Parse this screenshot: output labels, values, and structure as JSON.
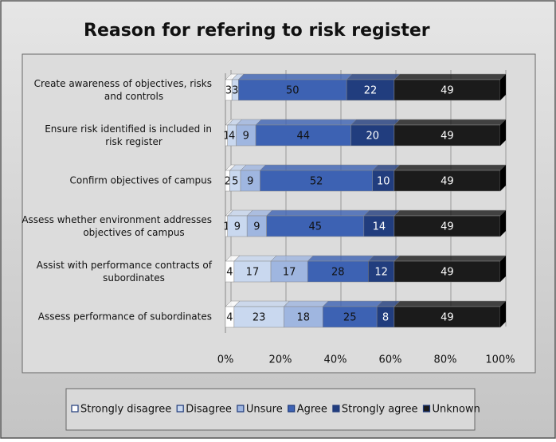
{
  "chart_data": {
    "type": "stacked_bar_100",
    "orientation": "horizontal",
    "title": "Reason for refering to risk register",
    "categories": [
      "Create awareness of objectives, risks and controls",
      "Ensure risk identified is included in risk register",
      "Confirm objectives of campus",
      "Assess whether  environment addresses objectives of campus",
      "Assist with performance contracts of subordinates",
      "Assess performance of subordinates"
    ],
    "series": [
      {
        "name": "Strongly disagree",
        "color": "#ffffff",
        "values": [
          3,
          1,
          2,
          1,
          4,
          4
        ]
      },
      {
        "name": "Disagree",
        "color": "#c9d8ef",
        "values": [
          3,
          4,
          5,
          9,
          17,
          23
        ]
      },
      {
        "name": "Unsure",
        "color": "#9fb6e0",
        "values": [
          0,
          9,
          9,
          9,
          17,
          18
        ]
      },
      {
        "name": "Agree",
        "color": "#3d62b3",
        "values": [
          50,
          44,
          52,
          45,
          28,
          25
        ]
      },
      {
        "name": "Strongly agree",
        "color": "#213d7e",
        "values": [
          22,
          20,
          10,
          14,
          12,
          8
        ]
      },
      {
        "name": "Unknown",
        "color": "#1b1b1b",
        "values": [
          49,
          49,
          49,
          49,
          49,
          49
        ]
      }
    ],
    "xlim": [
      0,
      100
    ],
    "xticks": [
      {
        "value": 0,
        "label": "0%"
      },
      {
        "value": 20,
        "label": "20%"
      },
      {
        "value": 40,
        "label": "40%"
      },
      {
        "value": 60,
        "label": "60%"
      },
      {
        "value": 80,
        "label": "80%"
      },
      {
        "value": 100,
        "label": "100%"
      }
    ],
    "legend": "bottom"
  }
}
